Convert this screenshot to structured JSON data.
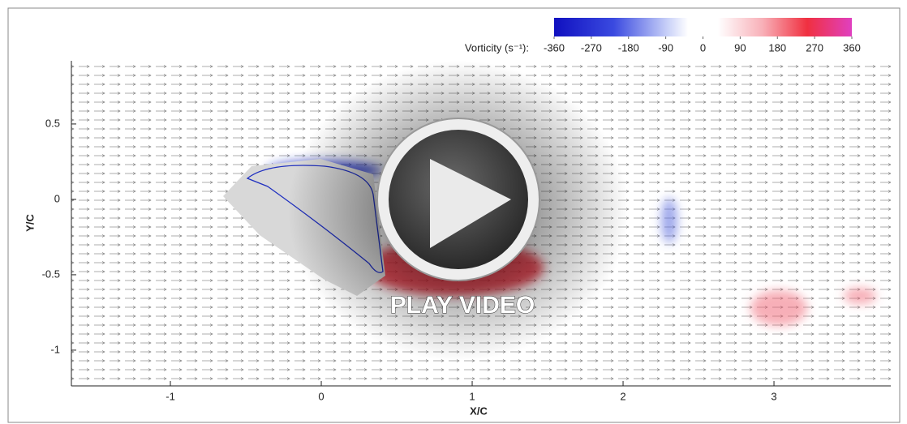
{
  "chart_data": {
    "type": "vector-field",
    "x_label": "X/C",
    "y_label": "Y/C",
    "xlim": [
      -1.656,
      3.774
    ],
    "ylim": [
      -1.237,
      0.919
    ],
    "xticks": [
      -1,
      0,
      1,
      2,
      3
    ],
    "yticks": [
      0.5,
      0,
      -0.5,
      -1
    ],
    "colorbar_label": "Vorticity (s⁻¹):",
    "clim": [
      -360,
      360
    ],
    "colorbar_ticks": [
      -360,
      -270,
      -180,
      -90,
      0,
      90,
      180,
      270,
      360
    ],
    "button_text": "PLAY VIDEO"
  }
}
